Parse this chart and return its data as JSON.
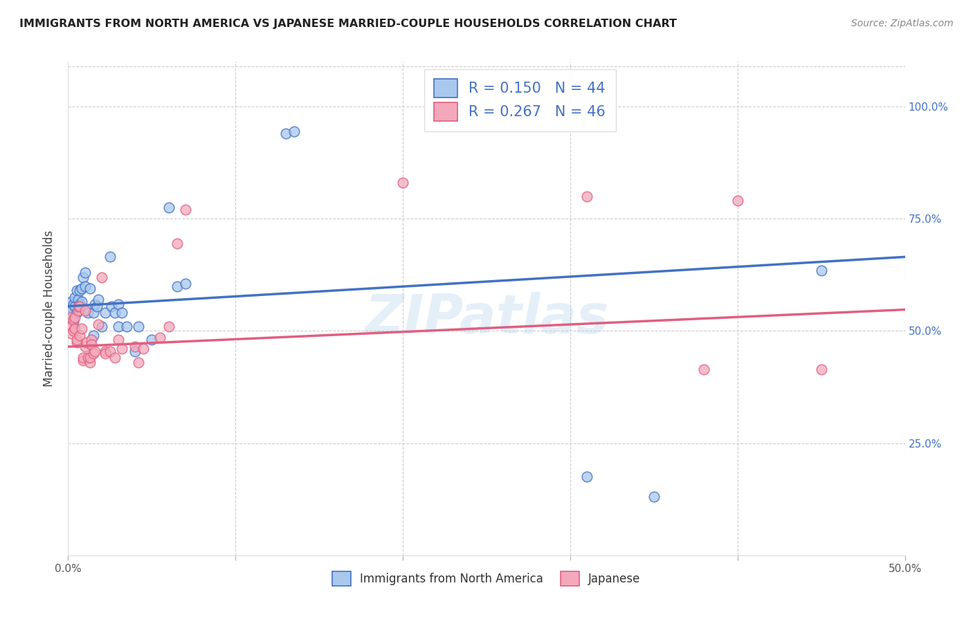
{
  "title": "IMMIGRANTS FROM NORTH AMERICA VS JAPANESE MARRIED-COUPLE HOUSEHOLDS CORRELATION CHART",
  "source": "Source: ZipAtlas.com",
  "ylabel": "Married-couple Households",
  "right_yticks": [
    "100.0%",
    "75.0%",
    "50.0%",
    "25.0%"
  ],
  "right_ytick_vals": [
    1.0,
    0.75,
    0.5,
    0.25
  ],
  "legend1_r": "0.150",
  "legend1_n": "44",
  "legend2_r": "0.267",
  "legend2_n": "46",
  "watermark": "ZIPatlas",
  "blue_color": "#A8C8EE",
  "pink_color": "#F4A8BB",
  "blue_line_color": "#4472C4",
  "pink_line_color": "#E06080",
  "blue_scatter": [
    [
      0.001,
      0.555
    ],
    [
      0.002,
      0.545
    ],
    [
      0.002,
      0.565
    ],
    [
      0.003,
      0.56
    ],
    [
      0.003,
      0.52
    ],
    [
      0.004,
      0.555
    ],
    [
      0.004,
      0.575
    ],
    [
      0.005,
      0.59
    ],
    [
      0.005,
      0.54
    ],
    [
      0.006,
      0.57
    ],
    [
      0.007,
      0.59
    ],
    [
      0.007,
      0.56
    ],
    [
      0.008,
      0.595
    ],
    [
      0.008,
      0.565
    ],
    [
      0.009,
      0.62
    ],
    [
      0.01,
      0.63
    ],
    [
      0.01,
      0.6
    ],
    [
      0.012,
      0.54
    ],
    [
      0.013,
      0.595
    ],
    [
      0.015,
      0.54
    ],
    [
      0.015,
      0.49
    ],
    [
      0.016,
      0.56
    ],
    [
      0.017,
      0.555
    ],
    [
      0.018,
      0.57
    ],
    [
      0.02,
      0.51
    ],
    [
      0.022,
      0.54
    ],
    [
      0.025,
      0.665
    ],
    [
      0.026,
      0.555
    ],
    [
      0.028,
      0.54
    ],
    [
      0.03,
      0.56
    ],
    [
      0.03,
      0.51
    ],
    [
      0.032,
      0.54
    ],
    [
      0.035,
      0.51
    ],
    [
      0.04,
      0.455
    ],
    [
      0.042,
      0.51
    ],
    [
      0.05,
      0.48
    ],
    [
      0.06,
      0.775
    ],
    [
      0.065,
      0.6
    ],
    [
      0.07,
      0.605
    ],
    [
      0.13,
      0.94
    ],
    [
      0.135,
      0.945
    ],
    [
      0.31,
      0.175
    ],
    [
      0.35,
      0.13
    ],
    [
      0.45,
      0.635
    ]
  ],
  "pink_scatter": [
    [
      0.001,
      0.53
    ],
    [
      0.002,
      0.51
    ],
    [
      0.002,
      0.495
    ],
    [
      0.003,
      0.525
    ],
    [
      0.003,
      0.5
    ],
    [
      0.004,
      0.505
    ],
    [
      0.004,
      0.53
    ],
    [
      0.005,
      0.475
    ],
    [
      0.005,
      0.48
    ],
    [
      0.006,
      0.545
    ],
    [
      0.006,
      0.555
    ],
    [
      0.007,
      0.49
    ],
    [
      0.007,
      0.555
    ],
    [
      0.008,
      0.505
    ],
    [
      0.009,
      0.435
    ],
    [
      0.009,
      0.44
    ],
    [
      0.01,
      0.545
    ],
    [
      0.01,
      0.465
    ],
    [
      0.011,
      0.475
    ],
    [
      0.012,
      0.44
    ],
    [
      0.013,
      0.43
    ],
    [
      0.013,
      0.44
    ],
    [
      0.014,
      0.48
    ],
    [
      0.014,
      0.47
    ],
    [
      0.015,
      0.45
    ],
    [
      0.016,
      0.455
    ],
    [
      0.018,
      0.515
    ],
    [
      0.02,
      0.62
    ],
    [
      0.022,
      0.455
    ],
    [
      0.022,
      0.45
    ],
    [
      0.025,
      0.455
    ],
    [
      0.028,
      0.44
    ],
    [
      0.03,
      0.48
    ],
    [
      0.032,
      0.46
    ],
    [
      0.04,
      0.465
    ],
    [
      0.042,
      0.43
    ],
    [
      0.045,
      0.46
    ],
    [
      0.055,
      0.485
    ],
    [
      0.06,
      0.51
    ],
    [
      0.065,
      0.695
    ],
    [
      0.07,
      0.77
    ],
    [
      0.2,
      0.83
    ],
    [
      0.31,
      0.8
    ],
    [
      0.38,
      0.415
    ],
    [
      0.4,
      0.79
    ],
    [
      0.45,
      0.415
    ]
  ],
  "xmin": 0.0,
  "xmax": 0.5,
  "ymin": 0.0,
  "ymax": 1.1,
  "blue_slope": 0.22,
  "blue_intercept": 0.555,
  "pink_slope": 0.165,
  "pink_intercept": 0.465
}
